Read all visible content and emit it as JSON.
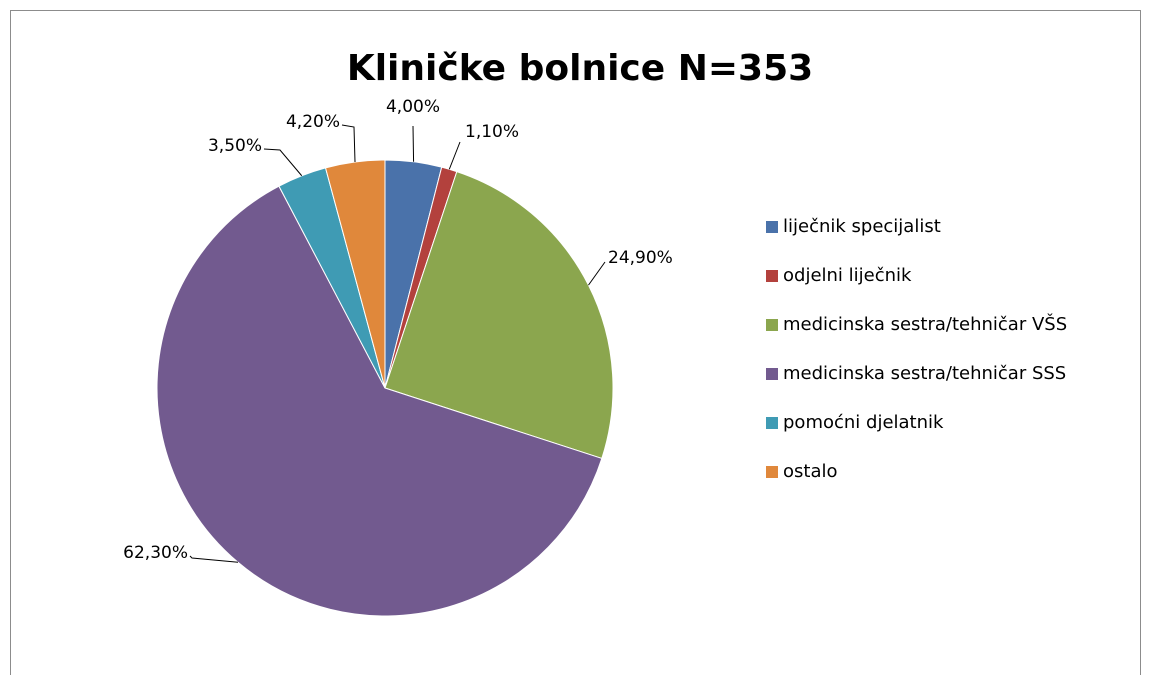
{
  "chart_data": {
    "type": "pie",
    "title": "Kliničke bolnice  N=353",
    "categories": [
      "liječnik specijalist",
      "odjelni liječnik",
      "medicinska sestra/tehničar VŠS",
      "medicinska sestra/tehničar SSS",
      "pomoćni djelatnik",
      "ostalo"
    ],
    "values": [
      4.0,
      1.1,
      24.9,
      62.3,
      3.5,
      4.2
    ],
    "value_labels": [
      "4,00%",
      "1,10%",
      "24,90%",
      "62,30%",
      "3,50%",
      "4,20%"
    ],
    "colors": [
      "#4a72aa",
      "#b3413d",
      "#8ba64e",
      "#725a8f",
      "#3f9bb4",
      "#e0883b"
    ],
    "legend": "right"
  }
}
